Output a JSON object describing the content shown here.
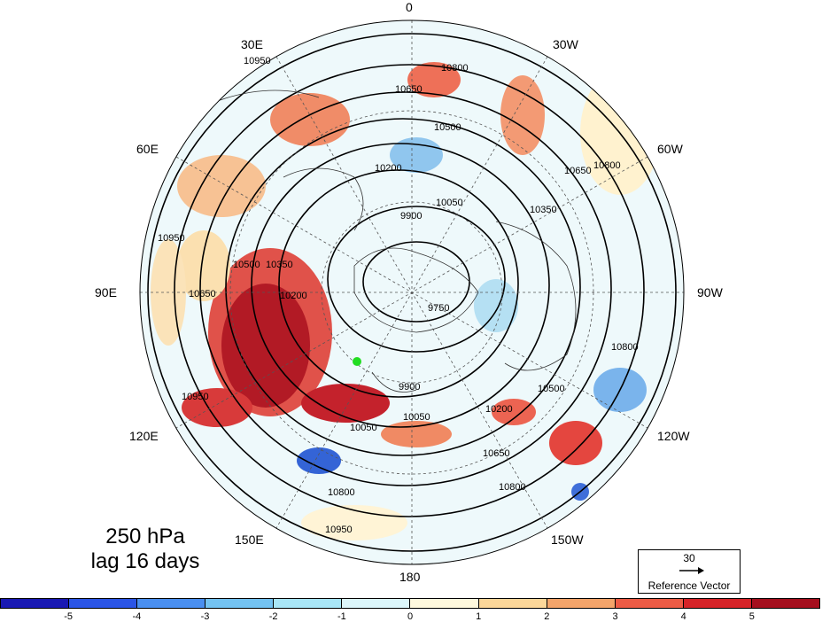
{
  "title": {
    "level": "250 hPa",
    "lag": "lag 16 days"
  },
  "longitude_labels": {
    "lon_0": "0",
    "lon_30w": "30W",
    "lon_60w": "60W",
    "lon_90w": "90W",
    "lon_120w": "120W",
    "lon_150w": "150W",
    "lon_180": "180",
    "lon_150e": "150E",
    "lon_120e": "120E",
    "lon_90e": "90E",
    "lon_60e": "60E",
    "lon_30e": "30E"
  },
  "contour_labels": [
    "10950",
    "10800",
    "10650",
    "10500",
    "10350",
    "10200",
    "10050",
    "9900",
    "9750"
  ],
  "reference_vector": {
    "value": "30",
    "label": "Reference Vector"
  },
  "colorbar": {
    "ticks": [
      "-5",
      "-4",
      "-3",
      "-2",
      "-1",
      "0",
      "1",
      "2",
      "3",
      "4",
      "5"
    ],
    "colors": [
      "#1919b3",
      "#2b55e6",
      "#4a8ff0",
      "#74c3f2",
      "#a9e6f7",
      "#dcf6fb",
      "#fff9de",
      "#fcd79a",
      "#f3a46a",
      "#ec5b45",
      "#d62328",
      "#a50f1e"
    ]
  },
  "marker_color": "#22dd22"
}
